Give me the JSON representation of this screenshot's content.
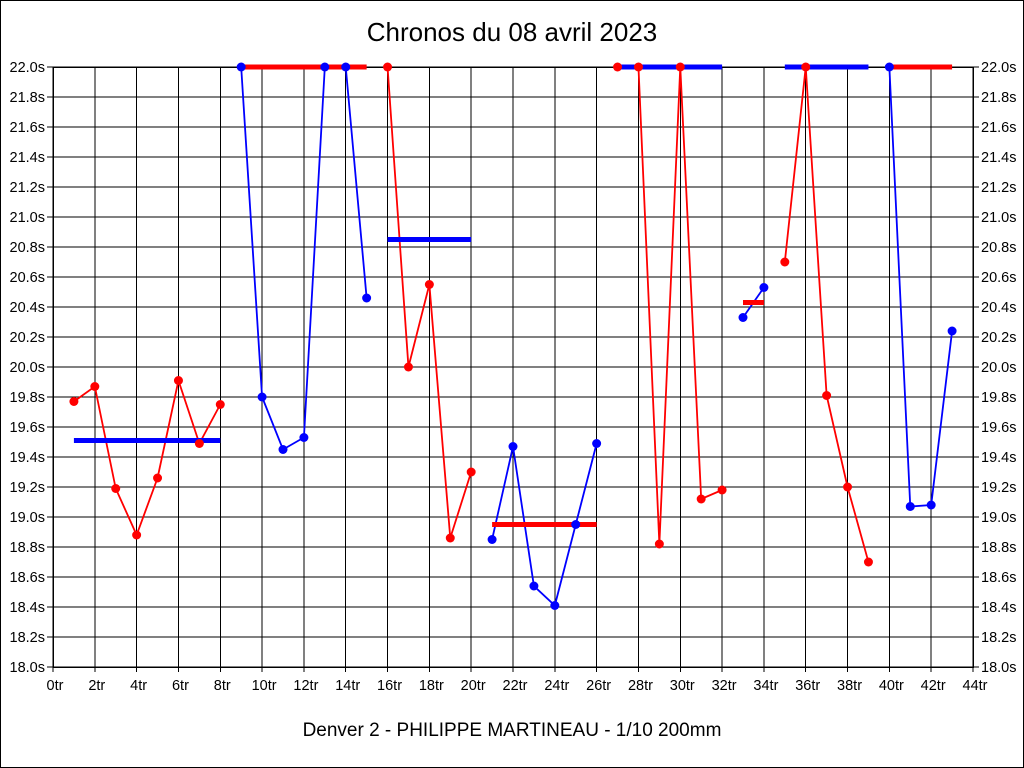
{
  "chart_data": {
    "type": "line",
    "title": "Chronos du 08 avril 2023",
    "caption": "Denver 2 - PHILIPPE MARTINEAU - 1/10 200mm",
    "x_unit": "tr",
    "y_unit": "s",
    "xlim": [
      0,
      44
    ],
    "ylim": [
      18.0,
      22.0
    ],
    "x_tick_step": 2,
    "y_tick_step": 0.2,
    "grid": true,
    "legend": "none",
    "colors": {
      "red": "#ff0000",
      "blue": "#0000ff",
      "grid": "#000000",
      "text": "#000000",
      "background": "#ffffff"
    },
    "series": [
      {
        "name": "serie-1-red",
        "color": "red",
        "points": [
          [
            1,
            19.77
          ],
          [
            2,
            19.87
          ],
          [
            3,
            19.19
          ],
          [
            4,
            18.88
          ],
          [
            5,
            19.26
          ],
          [
            6,
            19.91
          ],
          [
            7,
            19.49
          ],
          [
            8,
            19.75
          ]
        ]
      },
      {
        "name": "serie-2-blue",
        "color": "blue",
        "points": [
          [
            9,
            22.0
          ],
          [
            10,
            19.8
          ],
          [
            11,
            19.45
          ],
          [
            12,
            19.53
          ],
          [
            13,
            22.0
          ],
          [
            14,
            22.0
          ],
          [
            15,
            20.46
          ]
        ]
      },
      {
        "name": "serie-3-red",
        "color": "red",
        "points": [
          [
            16,
            22.0
          ],
          [
            17,
            20.0
          ],
          [
            18,
            20.55
          ],
          [
            19,
            18.86
          ],
          [
            20,
            19.3
          ]
        ]
      },
      {
        "name": "serie-4-blue",
        "color": "blue",
        "points": [
          [
            21,
            18.85
          ],
          [
            22,
            19.47
          ],
          [
            23,
            18.54
          ],
          [
            24,
            18.41
          ],
          [
            25,
            18.95
          ],
          [
            26,
            19.49
          ]
        ]
      },
      {
        "name": "serie-5-red",
        "color": "red",
        "points": [
          [
            27,
            22.0
          ],
          [
            28,
            22.0
          ],
          [
            29,
            18.82
          ],
          [
            30,
            22.0
          ],
          [
            31,
            19.12
          ],
          [
            32,
            19.18
          ]
        ]
      },
      {
        "name": "serie-6-blue",
        "color": "blue",
        "points": [
          [
            33,
            20.33
          ],
          [
            34,
            20.53
          ]
        ]
      },
      {
        "name": "serie-7-red",
        "color": "red",
        "points": [
          [
            35,
            20.7
          ],
          [
            36,
            22.0
          ],
          [
            37,
            19.81
          ],
          [
            38,
            19.2
          ],
          [
            39,
            18.7
          ]
        ]
      },
      {
        "name": "serie-8-blue",
        "color": "blue",
        "points": [
          [
            40,
            22.0
          ],
          [
            41,
            19.07
          ],
          [
            42,
            19.08
          ],
          [
            43,
            20.24
          ]
        ]
      }
    ],
    "average_segments": [
      {
        "color": "blue",
        "y": 19.51,
        "x1": 1,
        "x2": 8
      },
      {
        "color": "red",
        "y": 22.0,
        "x1": 9,
        "x2": 15
      },
      {
        "color": "blue",
        "y": 20.85,
        "x1": 16,
        "x2": 20
      },
      {
        "color": "red",
        "y": 18.95,
        "x1": 21,
        "x2": 26
      },
      {
        "color": "blue",
        "y": 22.0,
        "x1": 27,
        "x2": 32
      },
      {
        "color": "red",
        "y": 20.43,
        "x1": 33,
        "x2": 34
      },
      {
        "color": "blue",
        "y": 22.0,
        "x1": 35,
        "x2": 39
      },
      {
        "color": "red",
        "y": 22.0,
        "x1": 40,
        "x2": 43
      }
    ]
  }
}
